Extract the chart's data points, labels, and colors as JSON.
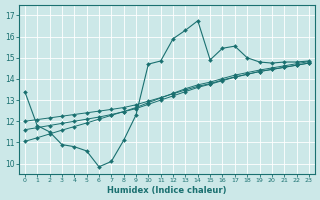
{
  "xlabel": "Humidex (Indice chaleur)",
  "xlim": [
    -0.5,
    23.5
  ],
  "ylim": [
    9.5,
    17.5
  ],
  "yticks": [
    10,
    11,
    12,
    13,
    14,
    15,
    16,
    17
  ],
  "xticks": [
    0,
    1,
    2,
    3,
    4,
    5,
    6,
    7,
    8,
    9,
    10,
    11,
    12,
    13,
    14,
    15,
    16,
    17,
    18,
    19,
    20,
    21,
    22,
    23
  ],
  "bg_color": "#cce8e8",
  "line_color": "#1a7070",
  "grid_color": "#b0d4d4",
  "series": {
    "jagged": [
      13.4,
      11.8,
      11.5,
      10.9,
      10.8,
      10.6,
      9.85,
      10.1,
      11.1,
      12.3,
      14.7,
      14.85,
      15.9,
      16.3,
      16.75,
      14.9,
      15.45,
      15.55,
      15.0,
      14.8,
      14.75,
      14.8,
      14.8,
      14.85
    ],
    "line1": [
      12.0,
      12.08,
      12.16,
      12.24,
      12.32,
      12.4,
      12.48,
      12.56,
      12.65,
      12.78,
      12.95,
      13.12,
      13.3,
      13.48,
      13.65,
      13.78,
      13.95,
      14.1,
      14.22,
      14.35,
      14.45,
      14.55,
      14.65,
      14.75
    ],
    "line2": [
      11.6,
      11.7,
      11.8,
      11.9,
      12.0,
      12.1,
      12.2,
      12.32,
      12.45,
      12.6,
      12.8,
      13.0,
      13.2,
      13.4,
      13.6,
      13.75,
      13.92,
      14.08,
      14.22,
      14.35,
      14.45,
      14.55,
      14.65,
      14.75
    ],
    "line3": [
      11.05,
      11.22,
      11.4,
      11.58,
      11.75,
      11.92,
      12.1,
      12.28,
      12.46,
      12.65,
      12.88,
      13.1,
      13.32,
      13.54,
      13.72,
      13.85,
      14.02,
      14.18,
      14.3,
      14.42,
      14.52,
      14.62,
      14.72,
      14.82
    ]
  }
}
